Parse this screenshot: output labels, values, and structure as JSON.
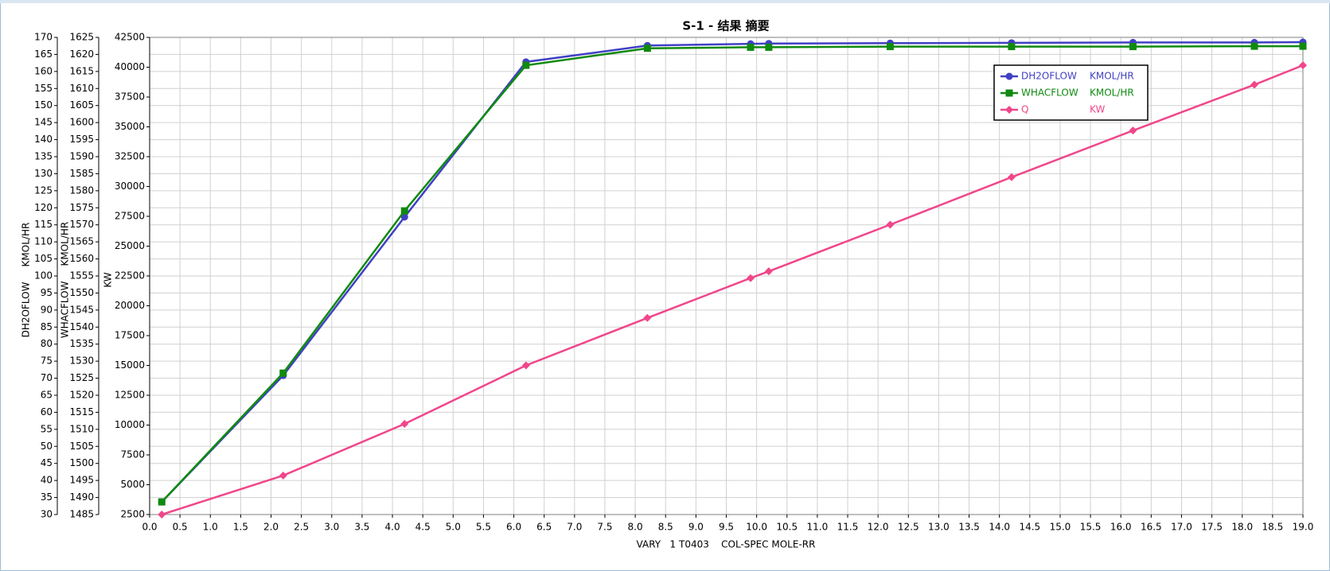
{
  "chart_data": {
    "type": "line",
    "title": "S-1 - 结果 摘要",
    "xlabel": "VARY   1 T0403    COL-SPEC MOLE-RR",
    "x": [
      0.2,
      2.2,
      4.2,
      6.2,
      8.2,
      9.9,
      10.2,
      12.2,
      14.2,
      16.2,
      18.2,
      19.0
    ],
    "xlim": [
      0,
      19
    ],
    "xticks": [
      {
        "value": 0,
        "label": "0.0"
      },
      0.5,
      {
        "value": 1,
        "label": "1.0"
      },
      1.5,
      {
        "value": 2,
        "label": "2.0"
      },
      2.5,
      {
        "value": 3,
        "label": "3.0"
      },
      3.5,
      {
        "value": 4,
        "label": "4.0"
      },
      4.5,
      {
        "value": 5,
        "label": "5.0"
      },
      5.5,
      {
        "value": 6,
        "label": "6.0"
      },
      6.5,
      {
        "value": 7,
        "label": "7.0"
      },
      7.5,
      {
        "value": 8,
        "label": "8.0"
      },
      8.5,
      {
        "value": 9,
        "label": "9.0"
      },
      9.5,
      {
        "value": 10,
        "label": "10.0"
      },
      10.5,
      {
        "value": 11,
        "label": "11.0"
      },
      11.5,
      {
        "value": 12,
        "label": "12.0"
      },
      12.5,
      {
        "value": 13,
        "label": "13.0"
      },
      13.5,
      {
        "value": 14,
        "label": "14.0"
      },
      14.5,
      {
        "value": 15,
        "label": "15.0"
      },
      15.5,
      {
        "value": 16,
        "label": "16.0"
      },
      16.5,
      {
        "value": 17,
        "label": "17.0"
      },
      17.5,
      {
        "value": 18,
        "label": "18.0"
      },
      18.5,
      {
        "value": 19,
        "label": "19.0"
      }
    ],
    "ylabel": "DH2OFLOW     KMOL/HR",
    "ylim": [
      30,
      170
    ],
    "yticks": [
      30,
      35,
      40,
      45,
      50,
      55,
      60,
      65,
      70,
      75,
      80,
      85,
      90,
      95,
      100,
      105,
      110,
      115,
      120,
      125,
      130,
      135,
      140,
      145,
      150,
      155,
      160,
      165,
      170
    ],
    "y2label": "WHACFLOW     KMOL/HR",
    "y2lim": [
      1485,
      1625
    ],
    "y2ticks": [
      1485,
      1490,
      1495,
      1500,
      1505,
      1510,
      1515,
      1520,
      1525,
      1530,
      1535,
      1540,
      1545,
      1550,
      1555,
      1560,
      1565,
      1570,
      1575,
      1580,
      1585,
      1590,
      1595,
      1600,
      1605,
      1610,
      1615,
      1620,
      1625
    ],
    "y3label": "KW",
    "y3lim": [
      2500,
      42500
    ],
    "y3ticks": [
      2500,
      5000,
      7500,
      10000,
      12500,
      15000,
      17500,
      20000,
      22500,
      25000,
      27500,
      30000,
      32500,
      35000,
      37500,
      40000,
      42500
    ],
    "grid": true,
    "legend": "upper right",
    "series": [
      {
        "name": "DH2OFLOW",
        "unit": "KMOL/HR",
        "color": "#4040c4",
        "marker": "circle",
        "axis": "y",
        "values": [
          33.7,
          70.8,
          117.3,
          162.8,
          167.6,
          168.1,
          168.2,
          168.3,
          168.4,
          168.5,
          168.5,
          168.6
        ]
      },
      {
        "name": "WHACFLOW",
        "unit": "KMOL/HR",
        "color": "#108a10",
        "marker": "square",
        "axis": "y2",
        "values": [
          1488.7,
          1526.5,
          1574.1,
          1616.8,
          1621.8,
          1622.1,
          1622.1,
          1622.3,
          1622.3,
          1622.3,
          1622.4,
          1622.4
        ]
      },
      {
        "name": "Q",
        "unit": "KW",
        "color": "#f0468a",
        "marker": "diamond",
        "axis": "y3",
        "values": [
          2500,
          5770,
          10100,
          15000,
          18980,
          22320,
          22890,
          26800,
          30780,
          34690,
          38530,
          40160
        ]
      }
    ]
  }
}
